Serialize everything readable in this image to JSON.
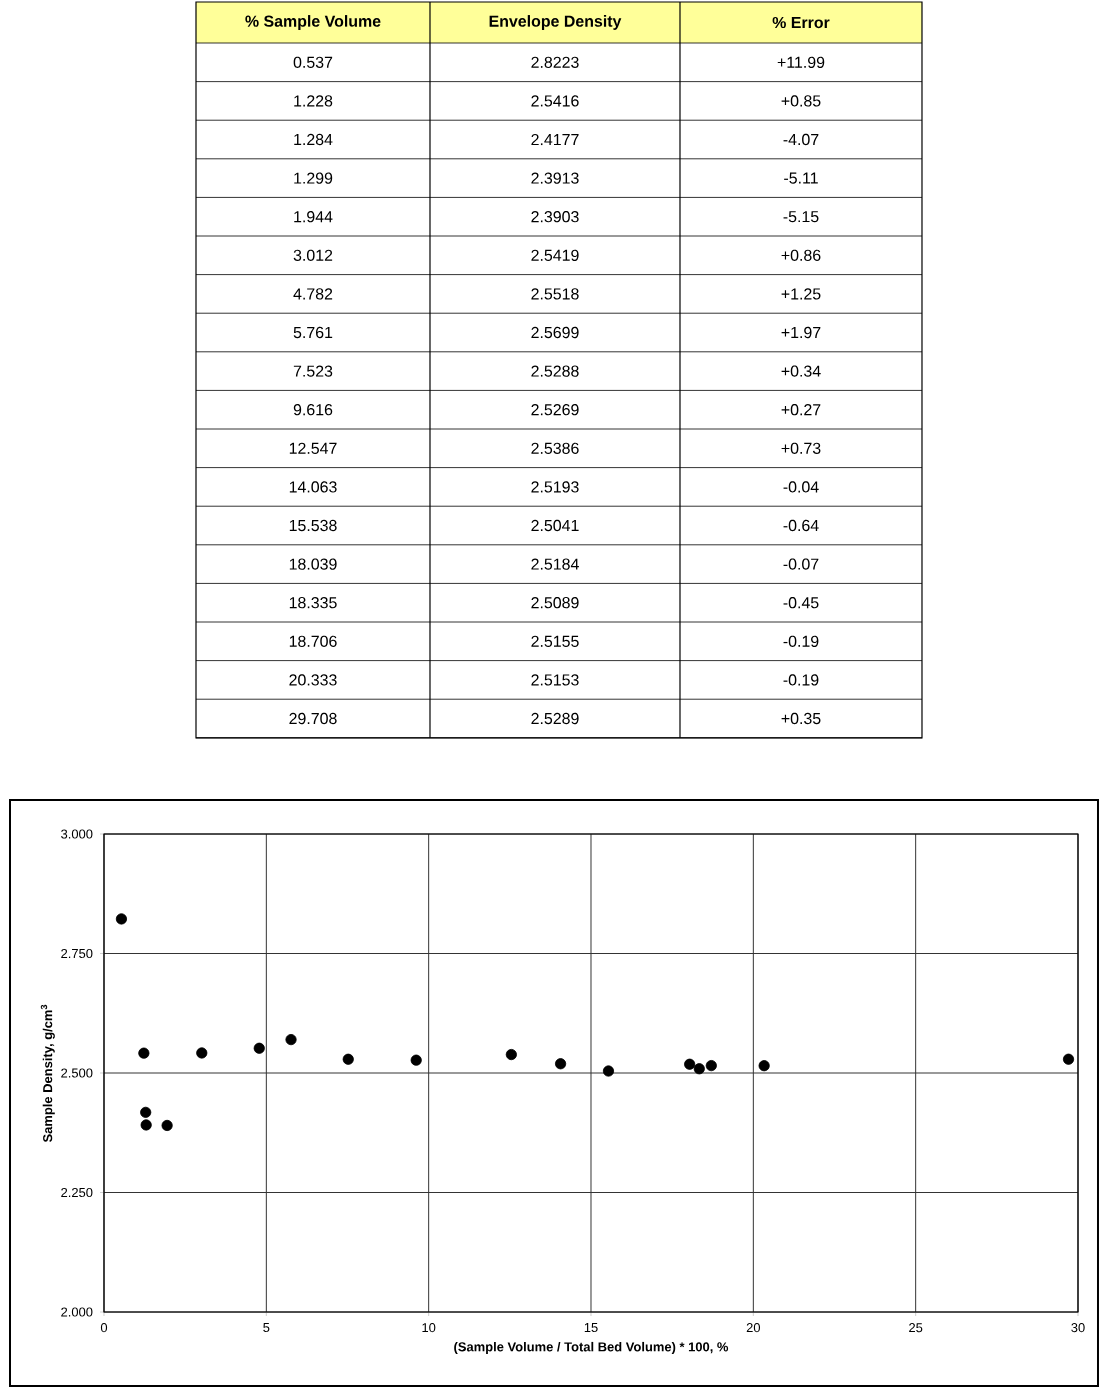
{
  "chart_data": [
    {
      "type": "other",
      "annotations": [
        "% Sample Volume",
        "Envelope Density",
        "% Error",
        "0.537",
        "2.8223",
        "+11.99",
        "1.228",
        "2.5416",
        "+0.85",
        "1.284",
        "2.4177",
        "-4.07",
        "1.299",
        "2.3913",
        "-5.11",
        "1.944",
        "2.3903",
        "-5.15",
        "3.012",
        "2.5419",
        "+0.86",
        "4.782",
        "2.5518",
        "+1.25",
        "5.761",
        "2.5699",
        "+1.97",
        "7.523",
        "2.5288",
        "+0.34",
        "9.616",
        "2.5269",
        "+0.27",
        "12.547",
        "2.5386",
        "+0.73",
        "14.063",
        "2.5193",
        "-0.04",
        "15.538",
        "2.5041",
        "-0.64",
        "18.039",
        "2.5184",
        "-0.07",
        "18.335",
        "2.5089",
        "-0.45",
        "18.706",
        "2.5155",
        "-0.19",
        "20.333",
        "2.5153",
        "-0.19",
        "29.708",
        "2.5289",
        "+0.35"
      ]
    },
    {
      "type": "scatter",
      "xlabel": "(Sample Volume / Total Bed Volume) * 100, %",
      "ylabel": "Sample Density, g/cm$^{3}$",
      "x": [
        0.537,
        1.228,
        1.284,
        1.299,
        1.944,
        3.012,
        4.782,
        5.761,
        7.523,
        9.616,
        12.547,
        14.063,
        15.538,
        18.039,
        18.335,
        18.706,
        20.333,
        29.708
      ],
      "values": [
        2.8223,
        2.5416,
        2.4177,
        2.3913,
        2.3903,
        2.5419,
        2.5518,
        2.5699,
        2.5288,
        2.5269,
        2.5386,
        2.5193,
        2.5041,
        2.5184,
        2.5089,
        2.5155,
        2.5153,
        2.5289
      ],
      "color": "#000000",
      "marker": "circle",
      "grid": true,
      "xlim": [
        0,
        30
      ],
      "xticks": [
        0,
        5,
        10,
        15,
        20,
        25,
        30
      ],
      "ylim": [
        2.0,
        3.0
      ],
      "yticks": [
        {
          "value": 2.0,
          "label": "2.000"
        },
        {
          "value": 2.25,
          "label": "2.250"
        },
        {
          "value": 2.5,
          "label": "2.500"
        },
        {
          "value": 2.75,
          "label": "2.750"
        },
        {
          "value": 3.0,
          "label": "3.000"
        }
      ]
    }
  ]
}
